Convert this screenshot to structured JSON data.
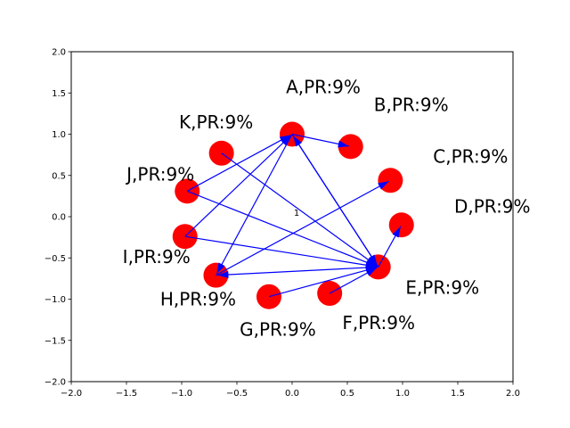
{
  "chart_data": {
    "type": "network",
    "xlim": [
      -2.0,
      2.0
    ],
    "ylim": [
      -2.0,
      2.0
    ],
    "x_ticks": [
      "−2.0",
      "−1.5",
      "−1.0",
      "−0.5",
      "0.0",
      "0.5",
      "1.0",
      "1.5",
      "2.0"
    ],
    "y_ticks": [
      "−2.0",
      "−1.5",
      "−1.0",
      "−0.5",
      "0.0",
      "0.5",
      "1.0",
      "1.5",
      "2.0"
    ],
    "center_label": "1",
    "node_color": "#ff0000",
    "edge_color": "#0000ff",
    "nodes": [
      {
        "id": "A",
        "label": "A,PR:9%",
        "x": 0.0,
        "y": 1.0
      },
      {
        "id": "B",
        "label": "B,PR:9%",
        "x": 0.53,
        "y": 0.85
      },
      {
        "id": "C",
        "label": "C,PR:9%",
        "x": 0.89,
        "y": 0.44
      },
      {
        "id": "D",
        "label": "D,PR:9%",
        "x": 0.99,
        "y": -0.1
      },
      {
        "id": "E",
        "label": "E,PR:9%",
        "x": 0.78,
        "y": -0.61
      },
      {
        "id": "F",
        "label": "F,PR:9%",
        "x": 0.34,
        "y": -0.93
      },
      {
        "id": "G",
        "label": "G,PR:9%",
        "x": -0.21,
        "y": -0.97
      },
      {
        "id": "H",
        "label": "H,PR:9%",
        "x": -0.69,
        "y": -0.71
      },
      {
        "id": "I",
        "label": "I,PR:9%",
        "x": -0.97,
        "y": -0.24
      },
      {
        "id": "J",
        "label": "J,PR:9%",
        "x": -0.95,
        "y": 0.31
      },
      {
        "id": "K",
        "label": "K,PR:9%",
        "x": -0.64,
        "y": 0.77
      }
    ],
    "edges": [
      {
        "from": "A",
        "to": "B"
      },
      {
        "from": "A",
        "to": "E"
      },
      {
        "from": "A",
        "to": "H"
      },
      {
        "from": "I",
        "to": "A"
      },
      {
        "from": "J",
        "to": "A"
      },
      {
        "from": "K",
        "to": "E"
      },
      {
        "from": "J",
        "to": "E"
      },
      {
        "from": "I",
        "to": "E"
      },
      {
        "from": "H",
        "to": "C"
      },
      {
        "from": "G",
        "to": "E"
      },
      {
        "from": "F",
        "to": "E"
      },
      {
        "from": "E",
        "to": "D"
      },
      {
        "from": "E",
        "to": "H"
      },
      {
        "from": "E",
        "to": "A"
      }
    ]
  }
}
